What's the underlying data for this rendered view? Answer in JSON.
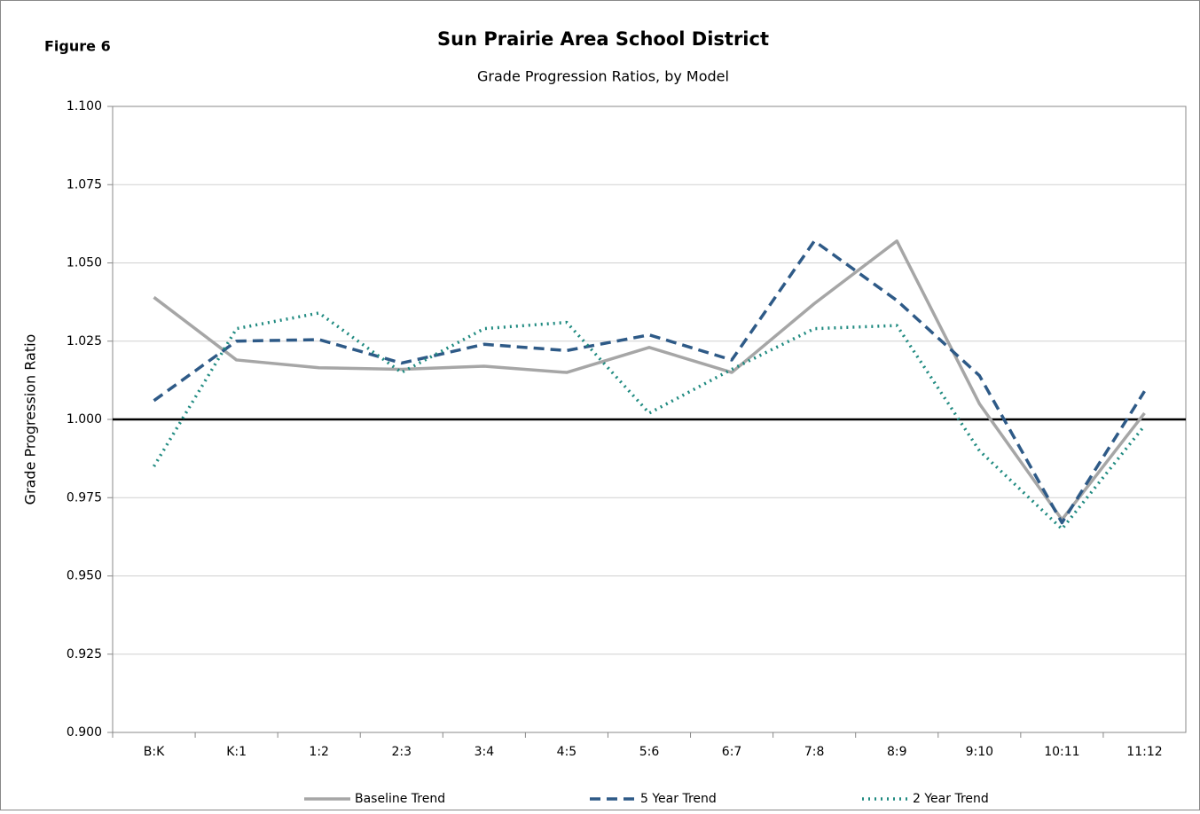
{
  "chart_data": {
    "type": "line",
    "figure_label": "Figure 6",
    "title": "Sun Prairie Area School District",
    "subtitle": "Grade Progression Ratios, by Model",
    "y_label": "Grade Progression Ratio",
    "categories": [
      "B:K",
      "K:1",
      "1:2",
      "2:3",
      "3:4",
      "4:5",
      "5:6",
      "6:7",
      "7:8",
      "8:9",
      "9:10",
      "10:11",
      "11:12"
    ],
    "series": [
      {
        "name": "Baseline Trend",
        "color": "#a6a6a6",
        "style": "solid",
        "values": [
          1.039,
          1.019,
          1.0165,
          1.016,
          1.017,
          1.015,
          1.023,
          1.015,
          1.037,
          1.057,
          1.005,
          0.968,
          1.002
        ]
      },
      {
        "name": "5 Year Trend",
        "color": "#2e5a87",
        "style": "dashed",
        "values": [
          1.006,
          1.025,
          1.0255,
          1.018,
          1.024,
          1.022,
          1.027,
          1.019,
          1.057,
          1.038,
          1.014,
          0.967,
          1.009
        ]
      },
      {
        "name": "2 Year Trend",
        "color": "#1f8a80",
        "style": "dotted",
        "values": [
          0.985,
          1.029,
          1.034,
          1.015,
          1.029,
          1.031,
          1.002,
          1.016,
          1.029,
          1.03,
          0.99,
          0.965,
          0.998
        ]
      }
    ],
    "ylim": [
      0.9,
      1.1
    ],
    "yticks": [
      {
        "value": 0.9,
        "label": "0.900"
      },
      0.925,
      {
        "value": 0.95,
        "label": "0.950"
      },
      0.975,
      {
        "value": 1,
        "label": "1.000"
      },
      1.025,
      {
        "value": 1.05,
        "label": "1.050"
      },
      1.075,
      {
        "value": 1.1,
        "label": "1.100"
      }
    ],
    "reference_line": 1,
    "grid": true,
    "legend": "bottom"
  }
}
